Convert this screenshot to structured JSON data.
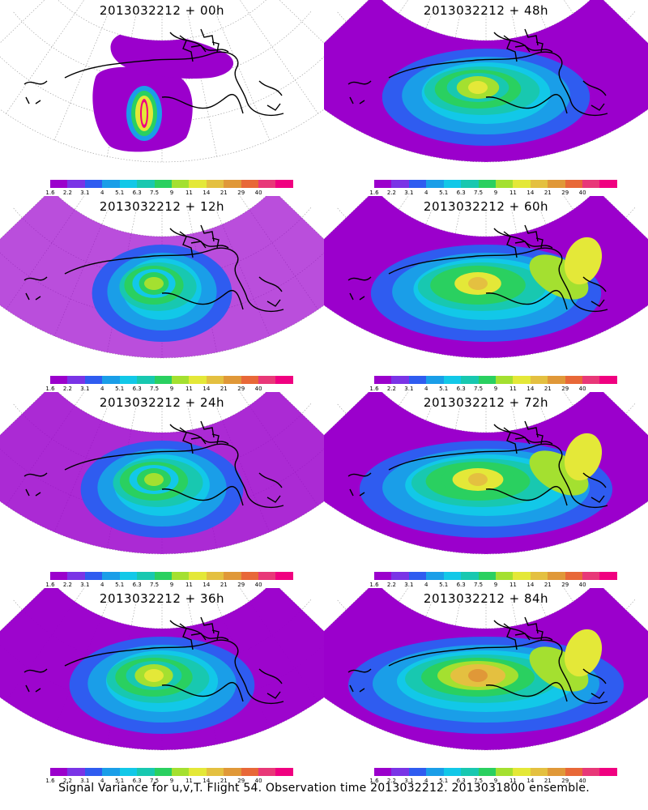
{
  "caption": "Signal Variance for u,v,T. Flight 54. Observation time 2013032212. 2013031800 ensemble.",
  "colorbar": {
    "colors": [
      "#9b00cc",
      "#7a34e6",
      "#2f5cf0",
      "#1a9ee8",
      "#12c8e8",
      "#18c8b0",
      "#2ad060",
      "#a4e030",
      "#e4e838",
      "#e4c040",
      "#e09838",
      "#e86838",
      "#e83878",
      "#f00080"
    ],
    "tick_labels": [
      "1.6",
      "2.2",
      "3.1",
      "4",
      "5.1",
      "6.3",
      "7.5",
      "9",
      "11",
      "14",
      "21",
      "29",
      "40"
    ]
  },
  "panels": [
    {
      "title": "2013032212 + 00h",
      "lead_hours": 0
    },
    {
      "title": "2013032212 + 48h",
      "lead_hours": 48
    },
    {
      "title": "2013032212 + 12h",
      "lead_hours": 12
    },
    {
      "title": "2013032212 + 60h",
      "lead_hours": 60
    },
    {
      "title": "2013032212 + 24h",
      "lead_hours": 24
    },
    {
      "title": "2013032212 + 72h",
      "lead_hours": 72
    },
    {
      "title": "2013032212 + 36h",
      "lead_hours": 36
    },
    {
      "title": "2013032212 + 84h",
      "lead_hours": 84
    }
  ]
}
